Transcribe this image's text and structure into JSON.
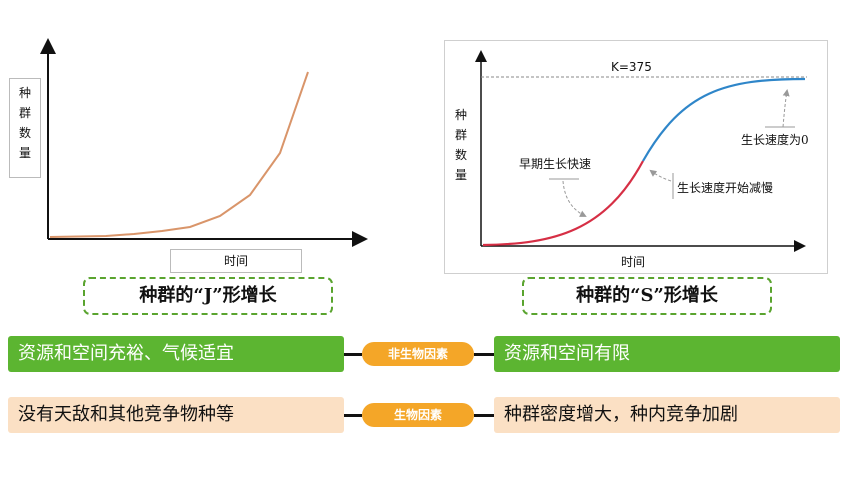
{
  "j_chart": {
    "y_label": [
      "种",
      "群",
      "数",
      "量"
    ],
    "x_label": "时间",
    "caption": "种群的“J”形增长"
  },
  "s_chart": {
    "y_label": [
      "种",
      "群",
      "数",
      "量"
    ],
    "x_label": "时间",
    "k_label": "K=375",
    "annotation_early": "早期生长快速",
    "annotation_slow": "生长速度开始减慢",
    "annotation_zero": "生长速度为0",
    "caption": "种群的“S”形增长"
  },
  "rows": [
    {
      "left": "资源和空间充裕、气候适宜",
      "factor": "非生物因素",
      "right": "资源和空间有限"
    },
    {
      "left": "没有天敌和其他竞争物种等",
      "factor": "生物因素",
      "right": "种群密度增大，种内竞争加剧"
    }
  ],
  "colors": {
    "j_curve": "#d9956a",
    "s_curve_early": "#d62f45",
    "s_curve_late": "#2f86c9",
    "green_bar": "#5cb531",
    "beige_bar": "#fbe0c4",
    "pill": "#f4a628",
    "caption_border": "#5aa42f"
  }
}
